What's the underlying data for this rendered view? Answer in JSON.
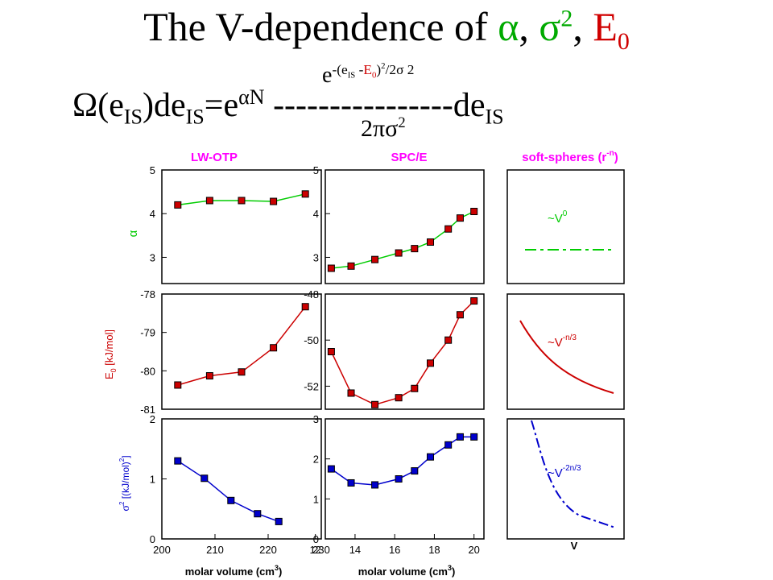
{
  "title": {
    "prefix": "The V-dependence of ",
    "alpha": "α",
    "sep1": ", ",
    "sigma": "σ",
    "sq": "2",
    "sep2": ", ",
    "E": "E",
    "zero": "0"
  },
  "formula": {
    "lhs_omega": "Ω(e",
    "lhs_IS": "IS",
    "lhs_de": ")de",
    "lhs_IS2": "IS",
    "lhs_eq": "=e",
    "lhs_sup": "αN",
    "dashes": " ----------------de",
    "rhs_IS": "IS",
    "num_e": "e",
    "num_sup1": "-(e",
    "num_IS": "IS",
    "num_minus": " -",
    "num_E": "E",
    "num_0": "0",
    "num_close": ")",
    "num_exp": "2",
    "num_div": "/2",
    "num_sigma": "σ",
    "num_sq": " 2",
    "den": "2πσ",
    "den_sq": "2"
  },
  "colors": {
    "alpha": "#00cc00",
    "alpha_marker": "#cc0000",
    "energy": "#cc0000",
    "sigma": "#0000cc",
    "column_title": "#ff00ff",
    "grid": "#000000"
  },
  "figure": {
    "column_titles": [
      "LW-OTP",
      "SPC/E",
      "soft-spheres (r"
    ],
    "soft_sup": "-n",
    "soft_close": ")",
    "row_labels": [
      "α",
      "E",
      "0",
      "[kJ/mol]",
      "σ",
      "2",
      "[(kJ/mol)",
      "2",
      "]"
    ],
    "xlabel_prefix": "molar volume (cm",
    "xlabel_sup": "3",
    "xlabel_close": ")",
    "soft_xlabel": "V",
    "soft_annotations": {
      "alpha": "~V",
      "alpha_sup": "0",
      "energy": "~V",
      "energy_sup": "-n/3",
      "sigma": "~V",
      "sigma_sup": "-2n/3"
    }
  },
  "chart_data": [
    {
      "type": "line",
      "panel": "LW-OTP alpha",
      "x": [
        203,
        209,
        215,
        221,
        227
      ],
      "y": [
        4.2,
        4.3,
        4.3,
        4.28,
        4.45
      ],
      "xlim": [
        200,
        230
      ],
      "ylim": [
        2.4,
        5
      ],
      "yticks": [
        3,
        4,
        5
      ],
      "ylabel": "α"
    },
    {
      "type": "line",
      "panel": "SPC/E alpha",
      "x": [
        12.8,
        13.8,
        15.0,
        16.2,
        17.0,
        17.8,
        18.7,
        19.3,
        20.0
      ],
      "y": [
        2.75,
        2.8,
        2.95,
        3.1,
        3.2,
        3.35,
        3.65,
        3.9,
        4.05
      ],
      "xlim": [
        12.5,
        20.5
      ],
      "ylim": [
        2.4,
        5
      ],
      "yticks": [
        3,
        4,
        5
      ]
    },
    {
      "type": "line",
      "panel": "LW-OTP E0",
      "x": [
        203,
        209,
        215,
        221,
        227
      ],
      "y": [
        -80.37,
        -80.13,
        -80.03,
        -79.4,
        -78.33
      ],
      "xlim": [
        200,
        230
      ],
      "ylim": [
        -81,
        -78
      ],
      "yticks": [
        -81,
        -80,
        -79,
        -78
      ],
      "ylabel": "E0 [kJ/mol]"
    },
    {
      "type": "line",
      "panel": "SPC/E E0",
      "x": [
        12.8,
        13.8,
        15.0,
        16.2,
        17.0,
        17.8,
        18.7,
        19.3,
        20.0
      ],
      "y": [
        -50.5,
        -52.3,
        -52.8,
        -52.5,
        -52.1,
        -51.0,
        -50.0,
        -48.9,
        -48.3
      ],
      "xlim": [
        12.5,
        20.5
      ],
      "ylim": [
        -53,
        -48
      ],
      "yticks": [
        -52,
        -50,
        -48
      ]
    },
    {
      "type": "line",
      "panel": "LW-OTP sigma^2",
      "x": [
        203,
        208,
        213,
        218,
        222
      ],
      "y": [
        1.3,
        1.01,
        0.64,
        0.42,
        0.29
      ],
      "xlim": [
        200,
        230
      ],
      "ylim": [
        0,
        2
      ],
      "yticks": [
        0,
        1,
        2
      ],
      "xticks": [
        200,
        210,
        220,
        230
      ],
      "xlabel": "molar volume (cm3)",
      "ylabel": "σ2 [(kJ/mol)2]"
    },
    {
      "type": "line",
      "panel": "SPC/E sigma^2",
      "x": [
        12.8,
        13.8,
        15.0,
        16.2,
        17.0,
        17.8,
        18.7,
        19.3,
        20.0
      ],
      "y": [
        1.75,
        1.4,
        1.35,
        1.5,
        1.7,
        2.05,
        2.35,
        2.55,
        2.55
      ],
      "xlim": [
        12.5,
        20.5
      ],
      "ylim": [
        0,
        3
      ],
      "yticks": [
        0,
        1,
        2,
        3
      ],
      "xticks": [
        12,
        14,
        16,
        18,
        20
      ],
      "xlabel": "molar volume (cm3)"
    },
    {
      "type": "line",
      "panel": "soft-spheres alpha",
      "annotation": "~V0"
    },
    {
      "type": "line",
      "panel": "soft-spheres E0",
      "annotation": "~V-n/3"
    },
    {
      "type": "line",
      "panel": "soft-spheres sigma^2",
      "annotation": "~V-2n/3",
      "xlabel": "V"
    }
  ]
}
